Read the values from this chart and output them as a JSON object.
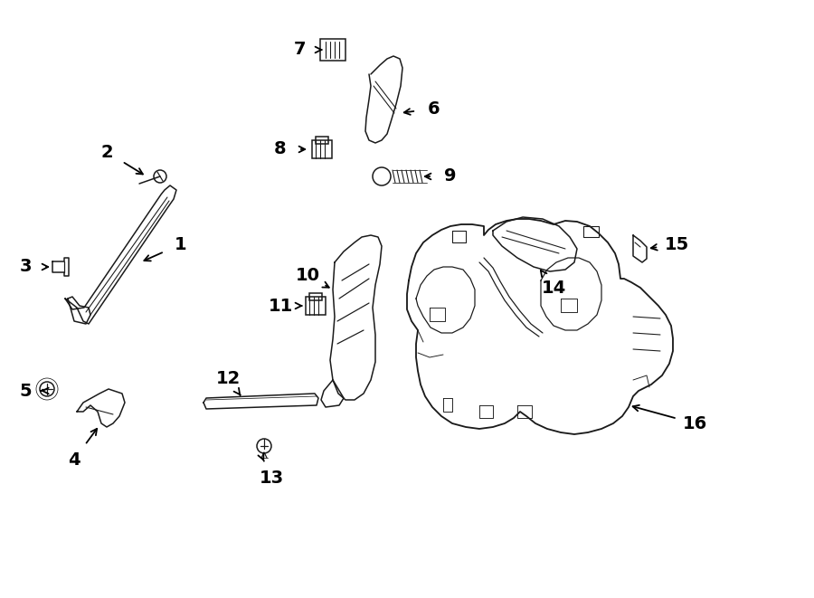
{
  "bg_color": "#ffffff",
  "line_color": "#1a1a1a",
  "line_width": 1.1,
  "fig_width": 9.0,
  "fig_height": 6.61,
  "dpi": 100
}
